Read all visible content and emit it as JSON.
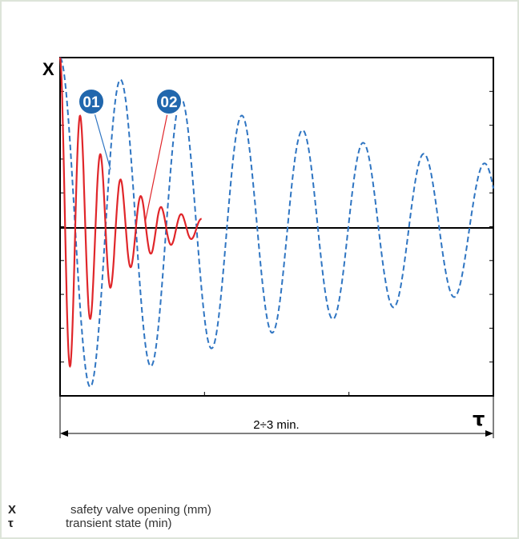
{
  "chart_data": {
    "type": "line",
    "ylabel": "X",
    "xlabel": "τ",
    "duration_label": "2÷3 min.",
    "xlim": [
      0,
      3
    ],
    "ylim": [
      -1,
      1
    ],
    "grid": false,
    "series": [
      {
        "name": "01",
        "style": "dashed",
        "color": "#2f75c2",
        "amplitude": 1.0,
        "decay_per_min": 0.33,
        "period_min": 0.42,
        "phase_shift": 0.25
      },
      {
        "name": "02",
        "style": "solid",
        "color": "#e0262a",
        "amplitude": 1.0,
        "decay_per_min": 3.0,
        "period_min": 0.14,
        "end_min": 0.98
      }
    ]
  },
  "markers": [
    {
      "label": "01",
      "color": "#2167ad"
    },
    {
      "label": "02",
      "color": "#2167ad"
    }
  ],
  "legend": [
    {
      "symbol": "X",
      "description": "safety valve opening (mm)"
    },
    {
      "symbol": "τ",
      "description": "transient state (min)"
    }
  ]
}
